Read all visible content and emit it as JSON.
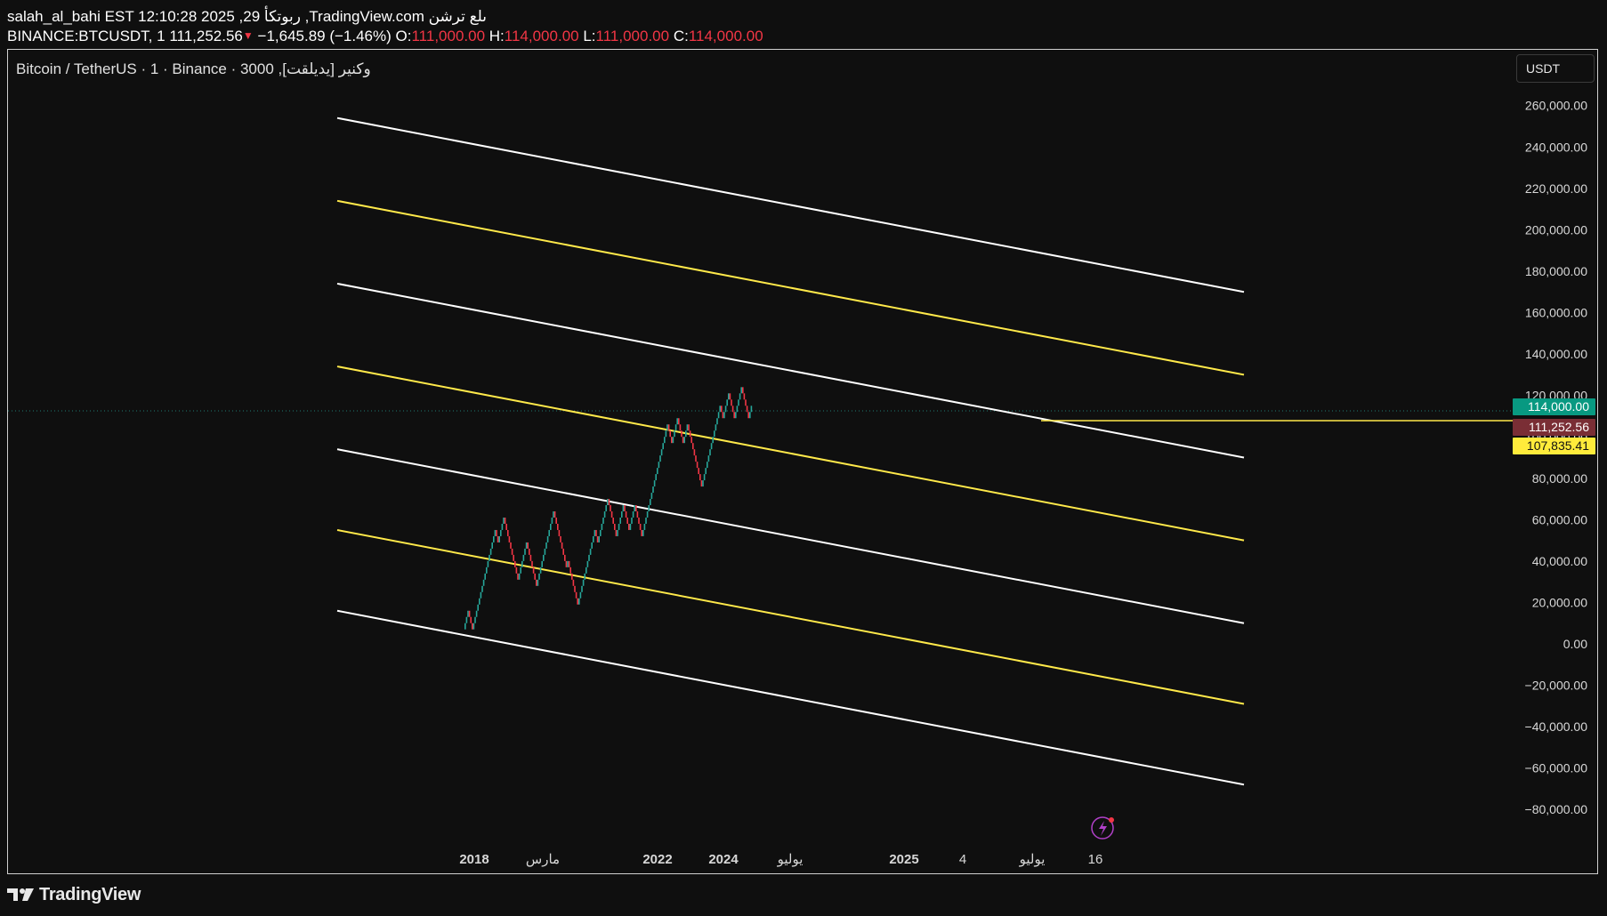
{
  "header": {
    "line1": "salah_al_bahi EST 12:10:28 2025 ,29 ربوتكأ ,TradingView.com ىلع ترشن",
    "symbol": "BINANCE:BTCUSDT, 1",
    "last_price": "111,252.56",
    "change": "−1,645.89 (−1.46%)",
    "o_label": "O:",
    "o_value": "111,000.00",
    "h_label": "H:",
    "h_value": "114,000.00",
    "l_label": "L:",
    "l_value": "111,000.00",
    "c_label": "C:",
    "c_value": "114,000.00"
  },
  "chart_title": "Bitcoin / TetherUS · 1 · Binance · 3000 ,وكنير [يديلقت]",
  "currency_button": "USDT",
  "colors": {
    "background": "#0f0f0f",
    "up": "#26a69a",
    "down": "#f23645",
    "channel_white": "#ffffff",
    "channel_yellow": "#ffe94a",
    "badge_green": "#089981",
    "badge_red": "#7a2e35",
    "badge_yellow": "#ffeb3b"
  },
  "price_axis": {
    "labels": [
      "260,000.00",
      "240,000.00",
      "220,000.00",
      "200,000.00",
      "180,000.00",
      "160,000.00",
      "140,000.00",
      "120,000.00",
      "100,000.00",
      "80,000.00",
      "60,000.00",
      "40,000.00",
      "20,000.00",
      "0.00",
      "−20,000.00",
      "−40,000.00",
      "−60,000.00",
      "−80,000.00"
    ]
  },
  "price_badges": [
    {
      "label": "114,000.00",
      "value": 114000,
      "color": "#089981",
      "text_color": "#ffffff"
    },
    {
      "label": "111,252.56",
      "value": 111252.56,
      "color": "#7a2e35",
      "text_color": "#ffffff"
    },
    {
      "label": "107,835.41",
      "value": 107835.41,
      "color": "#ffeb3b",
      "text_color": "#111111"
    }
  ],
  "time_axis": {
    "labels": [
      "2018",
      "مارس",
      "2022",
      "2024",
      "يوليو",
      "2025",
      "4",
      "يوليو",
      "16"
    ]
  },
  "footer": {
    "brand": "TradingView"
  },
  "chart_data": {
    "type": "renko",
    "box_size": 3000,
    "ylim": [
      -90000,
      270000
    ],
    "current_price": 111252.56,
    "horizontal_line": 107835.41,
    "bricks_path": [
      7000,
      16000,
      7000,
      37000,
      55000,
      49000,
      61000,
      31000,
      49000,
      28000,
      64000,
      37000,
      40000,
      19000,
      37000,
      55000,
      49000,
      70000,
      52000,
      67000,
      55000,
      67000,
      52000,
      67000,
      106000,
      97000,
      109000,
      97000,
      106000,
      76000,
      97000,
      115000,
      109000,
      121000,
      109000,
      124000,
      109000,
      115000
    ],
    "channel_lines": [
      {
        "color": "white",
        "start": 254000,
        "end": 170000
      },
      {
        "color": "yellow",
        "start": 214000,
        "end": 130000
      },
      {
        "color": "white",
        "start": 174000,
        "end": 90000
      },
      {
        "color": "yellow",
        "start": 134000,
        "end": 50000
      },
      {
        "color": "white",
        "start": 94000,
        "end": 10000
      },
      {
        "color": "yellow",
        "start": 55000,
        "end": -29000
      },
      {
        "color": "white",
        "start": 16000,
        "end": -68000
      }
    ]
  }
}
